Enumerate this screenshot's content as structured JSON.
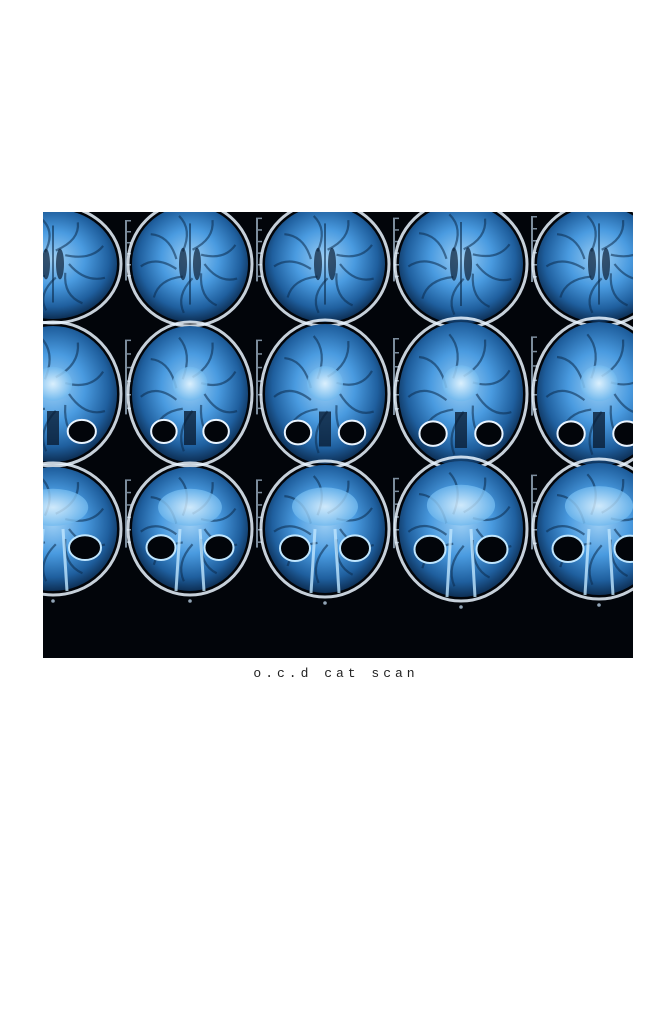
{
  "caption": "o.c.d cat scan",
  "image": {
    "subject": "brain-mri-scan-grid",
    "rows": 3,
    "columns": 5,
    "background_color": "#02050a",
    "tissue_color": "#3d8fd6",
    "highlight_color": "#bfe6ff",
    "skull_color": "#e9f4ff"
  }
}
